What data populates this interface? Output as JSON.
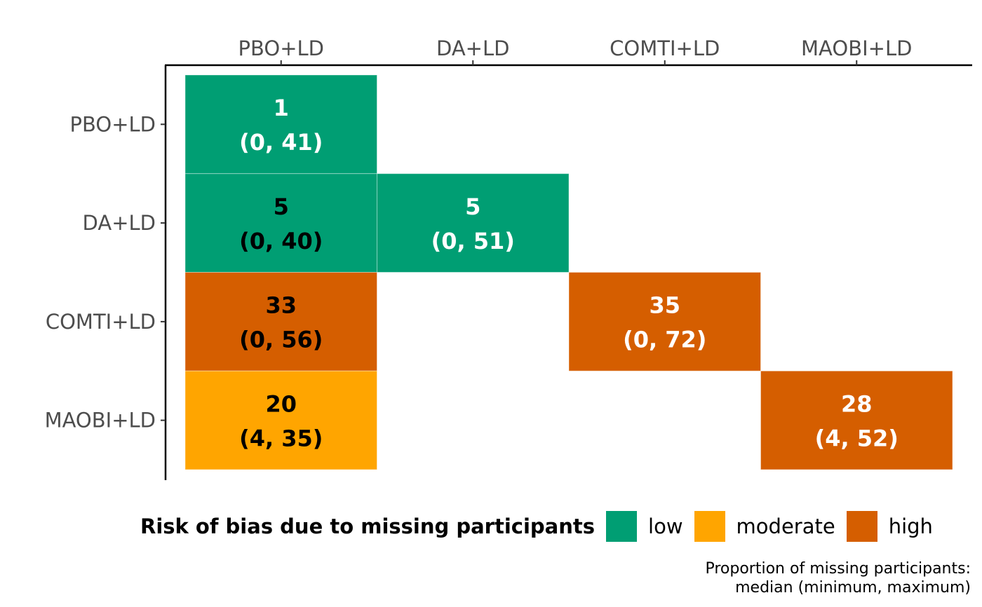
{
  "chart_data": {
    "type": "heatmap",
    "x_categories": [
      "PBO+LD",
      "DA+LD",
      "COMTI+LD",
      "MAOBI+LD"
    ],
    "y_categories": [
      "PBO+LD",
      "DA+LD",
      "COMTI+LD",
      "MAOBI+LD"
    ],
    "cells": [
      {
        "row": "PBO+LD",
        "col": "PBO+LD",
        "median": "1",
        "range": "(0, 41)",
        "risk": "low",
        "text_color": "#ffffff"
      },
      {
        "row": "DA+LD",
        "col": "PBO+LD",
        "median": "5",
        "range": "(0, 40)",
        "risk": "low",
        "text_color": "#000000"
      },
      {
        "row": "DA+LD",
        "col": "DA+LD",
        "median": "5",
        "range": "(0, 51)",
        "risk": "low",
        "text_color": "#ffffff"
      },
      {
        "row": "COMTI+LD",
        "col": "PBO+LD",
        "median": "33",
        "range": "(0, 56)",
        "risk": "high",
        "text_color": "#000000"
      },
      {
        "row": "COMTI+LD",
        "col": "COMTI+LD",
        "median": "35",
        "range": "(0, 72)",
        "risk": "high",
        "text_color": "#ffffff"
      },
      {
        "row": "MAOBI+LD",
        "col": "PBO+LD",
        "median": "20",
        "range": "(4, 35)",
        "risk": "moderate",
        "text_color": "#000000"
      },
      {
        "row": "MAOBI+LD",
        "col": "MAOBI+LD",
        "median": "28",
        "range": "(4, 52)",
        "risk": "high",
        "text_color": "#ffffff"
      }
    ],
    "risk_colors": {
      "low": "#009E73",
      "moderate": "#FFA500",
      "high": "#D55E00"
    },
    "legend": {
      "title": "Risk of bias due to missing participants",
      "items": [
        {
          "label": "low",
          "color": "#009E73"
        },
        {
          "label": "moderate",
          "color": "#FFA500"
        },
        {
          "label": "high",
          "color": "#D55E00"
        }
      ],
      "position": "bottom"
    },
    "caption_lines": [
      "Proportion of missing participants:",
      "median (minimum, maximum)"
    ],
    "x_axis_position": "top",
    "grid": false
  }
}
